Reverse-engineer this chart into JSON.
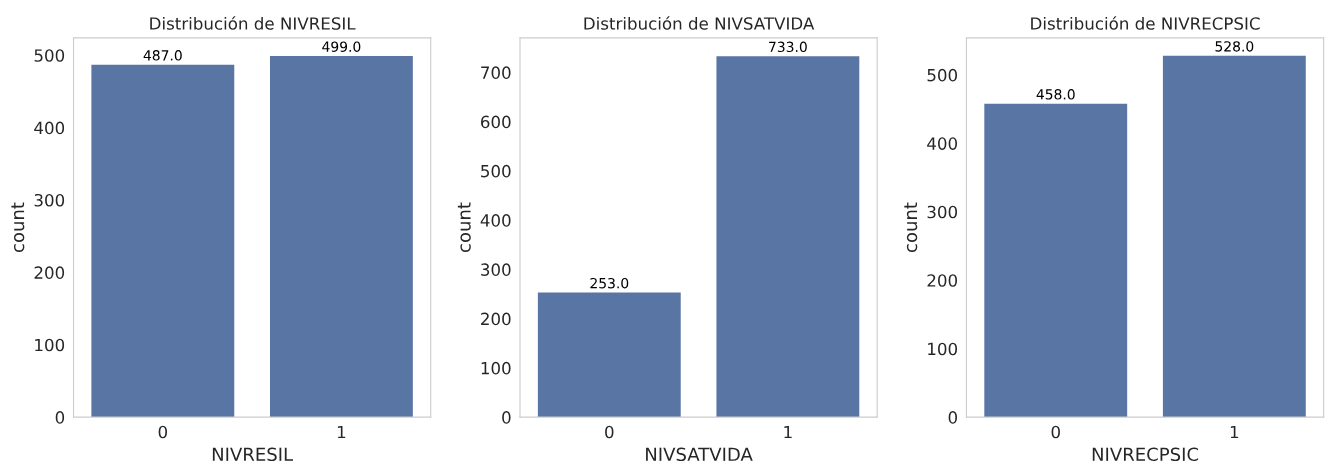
{
  "chart_data": [
    {
      "type": "bar",
      "title": "Distribución de NIVRESIL",
      "xlabel": "NIVRESIL",
      "ylabel": "count",
      "categories": [
        "0",
        "1"
      ],
      "values": [
        487,
        499
      ],
      "value_labels": [
        "487.0",
        "499.0"
      ],
      "color": "#5975a4",
      "ylim": [
        0,
        524
      ],
      "yticks": [
        0,
        100,
        200,
        300,
        400,
        500
      ],
      "grid": false
    },
    {
      "type": "bar",
      "title": "Distribución de NIVSATVIDA",
      "xlabel": "NIVSATVIDA",
      "ylabel": "count",
      "categories": [
        "0",
        "1"
      ],
      "values": [
        253,
        733
      ],
      "value_labels": [
        "253.0",
        "733.0"
      ],
      "color": "#5975a4",
      "ylim": [
        0,
        770
      ],
      "yticks": [
        0,
        100,
        200,
        300,
        400,
        500,
        600,
        700
      ],
      "grid": false
    },
    {
      "type": "bar",
      "title": "Distribución de NIVRECPSIC",
      "xlabel": "NIVRECPSIC",
      "ylabel": "count",
      "categories": [
        "0",
        "1"
      ],
      "values": [
        458,
        528
      ],
      "value_labels": [
        "458.0",
        "528.0"
      ],
      "color": "#5975a4",
      "ylim": [
        0,
        554
      ],
      "yticks": [
        0,
        100,
        200,
        300,
        400,
        500
      ],
      "grid": false
    }
  ]
}
